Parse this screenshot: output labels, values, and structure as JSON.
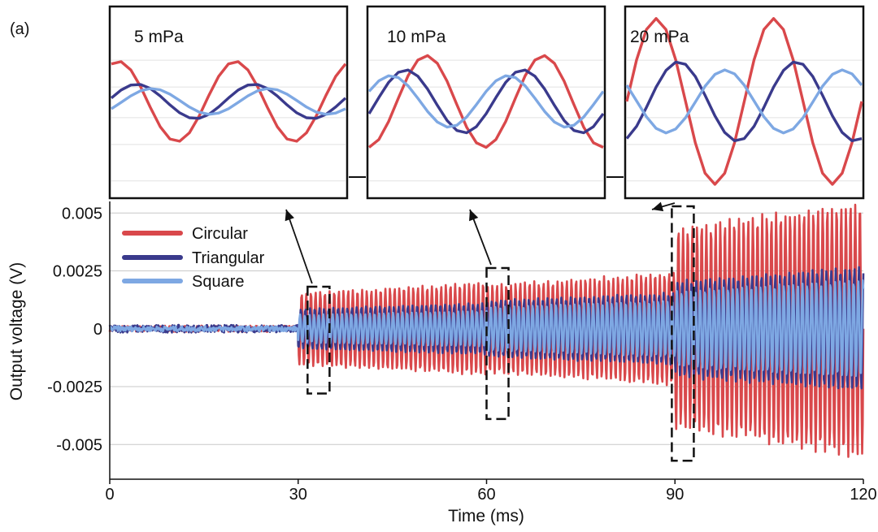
{
  "panel_label": "(a)",
  "colors": {
    "Circular": "#d9484b",
    "Triangular": "#3a3a8c",
    "Square": "#7ea8e3"
  },
  "chart_data": [
    {
      "type": "line",
      "title": "",
      "xlabel": "Time (ms)",
      "ylabel": "Output voltage (V)",
      "xlim": [
        0,
        120
      ],
      "ylim": [
        -0.0065,
        0.0055
      ],
      "xticks": [
        0,
        30,
        60,
        90,
        120
      ],
      "xtick_labels": [
        "0",
        "30",
        "60",
        "90",
        "120"
      ],
      "yticks": [
        0.005,
        0.0025,
        0,
        -0.0025,
        -0.005
      ],
      "ytick_labels": [
        "0.005",
        "0.0025",
        "0",
        "-0.0025",
        "-0.005"
      ],
      "grid": "horizontal",
      "legend": "top-left",
      "segments": [
        {
          "t_start": 0,
          "t_end": 30,
          "frequency_cycles_per_ms": 0,
          "noise": 0.0001
        },
        {
          "t_start": 30,
          "t_end": 60,
          "frequency_cycles_per_ms": 1.0
        },
        {
          "t_start": 60,
          "t_end": 90,
          "frequency_cycles_per_ms": 1.0
        },
        {
          "t_start": 90,
          "t_end": 120,
          "frequency_cycles_per_ms": 1.0
        }
      ],
      "series": [
        {
          "name": "Circular",
          "amplitude_by_segment": [
            0.00012,
            0.0018,
            0.0022,
            0.005
          ]
        },
        {
          "name": "Triangular",
          "amplitude_by_segment": [
            0.00015,
            0.001,
            0.0014,
            0.0024
          ]
        },
        {
          "name": "Square",
          "amplitude_by_segment": [
            0.0001,
            0.0007,
            0.0011,
            0.0019
          ]
        }
      ],
      "zoom_windows": [
        {
          "x_range": [
            31.5,
            35
          ],
          "target_inset": "5 mPa"
        },
        {
          "x_range": [
            60,
            63.5
          ],
          "target_inset": "10 mPa"
        },
        {
          "x_range": [
            89.5,
            93
          ],
          "target_inset": "20 mPa"
        }
      ]
    },
    {
      "type": "line",
      "title": "5 mPa",
      "ylim": [
        -0.003,
        0.003
      ],
      "series": [
        {
          "name": "Circular",
          "amplitude": 0.0014,
          "cycles": 2,
          "phase": 1.2
        },
        {
          "name": "Triangular",
          "amplitude": 0.0006,
          "cycles": 2,
          "phase": 0.2
        },
        {
          "name": "Square",
          "amplitude": 0.00045,
          "cycles": 2,
          "phase": -0.6
        }
      ]
    },
    {
      "type": "line",
      "title": "10 mPa",
      "ylim": [
        -0.003,
        0.003
      ],
      "series": [
        {
          "name": "Circular",
          "amplitude": 0.0016,
          "cycles": 2,
          "phase": -1.5
        },
        {
          "name": "Triangular",
          "amplitude": 0.0011,
          "cycles": 2,
          "phase": -0.4
        },
        {
          "name": "Square",
          "amplitude": 0.0009,
          "cycles": 2,
          "phase": 0.4
        }
      ]
    },
    {
      "type": "line",
      "title": "20 mPa",
      "ylim": [
        -0.0052,
        0.0052
      ],
      "series": [
        {
          "name": "Circular",
          "amplitude": 0.005,
          "cycles": 2,
          "phase": 0.0
        },
        {
          "name": "Triangular",
          "amplitude": 0.0024,
          "cycles": 2,
          "phase": -1.2
        },
        {
          "name": "Square",
          "amplitude": 0.0019,
          "cycles": 2,
          "phase": 2.6
        }
      ]
    }
  ]
}
